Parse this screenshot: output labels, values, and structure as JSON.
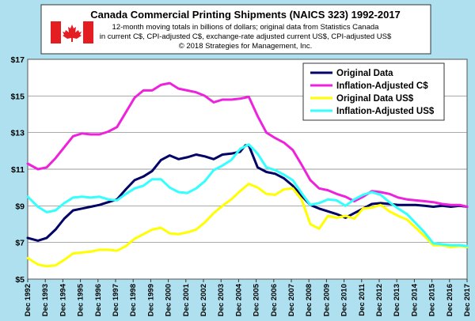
{
  "chart_data": {
    "type": "line",
    "title": "Canada Commercial Printing Shipments (NAICS 323) 1992-2017",
    "subtitle_lines": [
      "12-month moving totals in billions of dollars; original data from Statistics Canada",
      "in current C$, CPI-adjusted C$, exchange-rate adjusted current US$, CPI-adjusted US$",
      "© 2018 Strategies for Management, Inc."
    ],
    "flag_icon": "canada-flag-icon",
    "x_tick_labels": [
      "Dec 1992",
      "Dec 1993",
      "Dec 1994",
      "Dec 1995",
      "Dec 1996",
      "Dec 1997",
      "Dec 1998",
      "Dec 1999",
      "Dec 2000",
      "Dec 2001",
      "Dec 2002",
      "Dec 2003",
      "Dec 2004",
      "Dec 2005",
      "Dec 2006",
      "Dec 2007",
      "Dec 2008",
      "Dec 2009",
      "Dec 2010",
      "Dec 2011",
      "Dec 2012",
      "Dec 2013",
      "Dec 2014",
      "Dec 2015",
      "Dec 2016",
      "Dec 2017"
    ],
    "x_range": [
      1992.92,
      2017.92
    ],
    "y_ticks": [
      5,
      7,
      9,
      11,
      13,
      15,
      17
    ],
    "y_tick_labels": [
      "$5",
      "$7",
      "$9",
      "$11",
      "$13",
      "$15",
      "$17"
    ],
    "ylim": [
      5,
      17
    ],
    "grid": "horizontal",
    "legend_position": "top-right",
    "series": [
      {
        "name": "Original Data",
        "color": "#000066",
        "x": [
          1992.92,
          1993.5,
          1994.0,
          1994.5,
          1995.0,
          1995.5,
          1996.0,
          1996.5,
          1997.0,
          1997.5,
          1998.0,
          1998.5,
          1999.0,
          1999.5,
          2000.0,
          2000.5,
          2001.0,
          2001.5,
          2002.0,
          2002.5,
          2003.0,
          2003.5,
          2004.0,
          2004.5,
          2005.0,
          2005.3,
          2005.5,
          2006.0,
          2006.5,
          2007.0,
          2007.5,
          2008.0,
          2008.5,
          2009.0,
          2009.5,
          2010.0,
          2010.5,
          2011.0,
          2011.5,
          2012.0,
          2012.5,
          2013.0,
          2013.5,
          2014.0,
          2014.5,
          2015.0,
          2015.5,
          2016.0,
          2016.5,
          2017.0,
          2017.5,
          2017.92
        ],
        "y": [
          7.25,
          7.1,
          7.25,
          7.7,
          8.3,
          8.75,
          8.85,
          8.95,
          9.05,
          9.2,
          9.35,
          9.9,
          10.4,
          10.6,
          10.9,
          11.5,
          11.75,
          11.55,
          11.65,
          11.8,
          11.7,
          11.55,
          11.8,
          11.85,
          11.95,
          12.3,
          12.3,
          11.1,
          10.85,
          10.75,
          10.5,
          10.1,
          9.55,
          9.05,
          8.85,
          8.7,
          8.55,
          8.35,
          8.6,
          8.85,
          9.1,
          9.15,
          9.1,
          9.05,
          9.05,
          9.05,
          9.0,
          8.95,
          9.0,
          8.95,
          9.0,
          8.95
        ]
      },
      {
        "name": "Inflation-Adjusted C$",
        "color": "#ee22dd",
        "x": [
          1992.92,
          1993.5,
          1994.0,
          1994.5,
          1995.0,
          1995.5,
          1996.0,
          1996.5,
          1997.0,
          1997.5,
          1998.0,
          1998.5,
          1999.0,
          1999.5,
          2000.0,
          2000.5,
          2001.0,
          2001.5,
          2002.0,
          2002.5,
          2003.0,
          2003.5,
          2004.0,
          2004.5,
          2005.0,
          2005.5,
          2006.0,
          2006.5,
          2007.0,
          2007.5,
          2008.0,
          2008.5,
          2009.0,
          2009.5,
          2010.0,
          2010.5,
          2011.0,
          2011.5,
          2012.0,
          2012.5,
          2013.0,
          2013.5,
          2014.0,
          2014.5,
          2015.0,
          2015.5,
          2016.0,
          2016.5,
          2017.0,
          2017.5,
          2017.92
        ],
        "y": [
          11.3,
          11.0,
          11.1,
          11.6,
          12.2,
          12.8,
          12.95,
          12.9,
          12.9,
          13.05,
          13.3,
          14.1,
          14.9,
          15.3,
          15.3,
          15.6,
          15.7,
          15.4,
          15.3,
          15.2,
          15.0,
          14.65,
          14.8,
          14.8,
          14.85,
          14.95,
          13.9,
          13.0,
          12.7,
          12.45,
          12.05,
          11.25,
          10.4,
          9.95,
          9.85,
          9.65,
          9.5,
          9.25,
          9.5,
          9.8,
          9.75,
          9.65,
          9.45,
          9.35,
          9.3,
          9.25,
          9.2,
          9.1,
          9.05,
          9.05,
          8.95
        ]
      },
      {
        "name": "Original Data US$",
        "color": "#ffff00",
        "x": [
          1992.92,
          1993.5,
          1994.0,
          1994.5,
          1995.0,
          1995.5,
          1996.0,
          1996.5,
          1997.0,
          1997.5,
          1998.0,
          1998.5,
          1999.0,
          1999.5,
          2000.0,
          2000.5,
          2001.0,
          2001.5,
          2002.0,
          2002.5,
          2003.0,
          2003.5,
          2004.0,
          2004.5,
          2005.0,
          2005.5,
          2006.0,
          2006.5,
          2007.0,
          2007.5,
          2008.0,
          2008.5,
          2009.0,
          2009.5,
          2010.0,
          2010.5,
          2011.0,
          2011.5,
          2012.0,
          2012.5,
          2013.0,
          2013.5,
          2014.0,
          2014.5,
          2015.0,
          2015.5,
          2016.0,
          2016.5,
          2017.0,
          2017.5,
          2017.92
        ],
        "y": [
          6.15,
          5.8,
          5.7,
          5.75,
          6.05,
          6.4,
          6.45,
          6.5,
          6.6,
          6.6,
          6.55,
          6.8,
          7.2,
          7.45,
          7.7,
          7.8,
          7.5,
          7.45,
          7.55,
          7.7,
          8.1,
          8.6,
          9.0,
          9.35,
          9.8,
          10.2,
          10.0,
          9.65,
          9.6,
          9.9,
          9.95,
          9.35,
          8.0,
          7.75,
          8.45,
          8.35,
          8.45,
          8.3,
          8.85,
          8.9,
          9.05,
          8.7,
          8.45,
          8.25,
          7.8,
          7.35,
          6.85,
          6.85,
          6.75,
          6.8,
          6.75
        ]
      },
      {
        "name": "Inflation-Adjusted US$",
        "color": "#33ffff",
        "x": [
          1992.92,
          1993.5,
          1994.0,
          1994.5,
          1995.0,
          1995.5,
          1996.0,
          1996.5,
          1997.0,
          1997.5,
          1998.0,
          1998.5,
          1999.0,
          1999.5,
          2000.0,
          2000.5,
          2001.0,
          2001.5,
          2002.0,
          2002.5,
          2003.0,
          2003.5,
          2004.0,
          2004.5,
          2005.0,
          2005.5,
          2006.0,
          2006.5,
          2007.0,
          2007.5,
          2008.0,
          2008.5,
          2009.0,
          2009.5,
          2010.0,
          2010.5,
          2011.0,
          2011.5,
          2012.0,
          2012.5,
          2013.0,
          2013.5,
          2014.0,
          2014.5,
          2015.0,
          2015.5,
          2016.0,
          2016.5,
          2017.0,
          2017.5,
          2017.92
        ],
        "y": [
          9.5,
          8.95,
          8.65,
          8.75,
          9.15,
          9.45,
          9.5,
          9.45,
          9.5,
          9.35,
          9.3,
          9.65,
          9.95,
          10.1,
          10.45,
          10.45,
          10.0,
          9.75,
          9.7,
          9.95,
          10.35,
          10.95,
          11.2,
          11.5,
          12.1,
          12.35,
          11.85,
          11.1,
          10.95,
          10.7,
          10.4,
          9.7,
          9.05,
          9.15,
          9.35,
          9.3,
          9.0,
          9.35,
          9.6,
          9.75,
          9.6,
          9.2,
          8.85,
          8.55,
          8.05,
          7.55,
          6.95,
          6.9,
          6.85,
          6.85,
          6.8
        ]
      }
    ]
  }
}
